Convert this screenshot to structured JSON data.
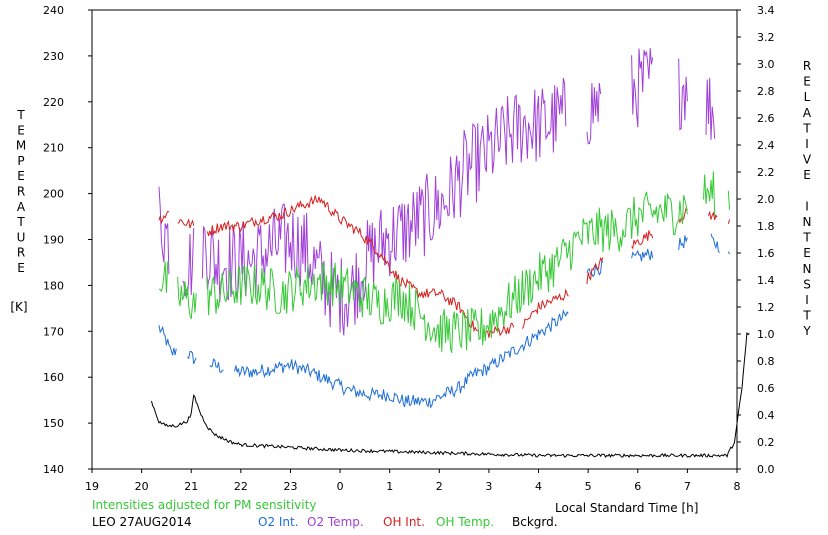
{
  "chart_data": {
    "type": "line",
    "title": "",
    "note": "Intensities adjusted for PM sensitivity",
    "site_date": "LEO 27AUG2014",
    "xlabel": "Local Standard Time [h]",
    "ylabel_left_letters": [
      "T",
      "E",
      "M",
      "P",
      "E",
      "R",
      "A",
      "T",
      "U",
      "R",
      "E"
    ],
    "ylabel_left_unit": "[K]",
    "ylabel_right_letters": [
      "R",
      "E",
      "L",
      "A",
      "T",
      "I",
      "V",
      "E",
      "",
      "I",
      "N",
      "T",
      "E",
      "N",
      "S",
      "I",
      "T",
      "Y"
    ],
    "x_axis": {
      "range": [
        19,
        32
      ],
      "ticks": [
        19,
        20,
        21,
        22,
        23,
        24,
        25,
        26,
        27,
        28,
        29,
        30,
        31,
        32
      ],
      "tick_labels": [
        "19",
        "20",
        "21",
        "22",
        "23",
        "0",
        "1",
        "2",
        "3",
        "4",
        "5",
        "6",
        "7",
        "8"
      ]
    },
    "y_left": {
      "range": [
        140,
        240
      ],
      "ticks": [
        140,
        150,
        160,
        170,
        180,
        190,
        200,
        210,
        220,
        230,
        240
      ],
      "tick_labels": [
        "140",
        "150",
        "160",
        "170",
        "180",
        "190",
        "200",
        "210",
        "220",
        "230",
        "240"
      ]
    },
    "y_right": {
      "range": [
        0.0,
        3.4
      ],
      "ticks": [
        0.0,
        0.2,
        0.4,
        0.6,
        0.8,
        1.0,
        1.2,
        1.4,
        1.6,
        1.8,
        2.0,
        2.2,
        2.4,
        2.6,
        2.8,
        3.0,
        3.2,
        3.4
      ],
      "tick_labels": [
        "0.0",
        "0.2",
        "0.4",
        "0.6",
        "0.8",
        "1.0",
        "1.2",
        "1.4",
        "1.6",
        "1.8",
        "2.0",
        "2.2",
        "2.4",
        "2.6",
        "2.8",
        "3.0",
        "3.2",
        "3.4"
      ]
    },
    "grid": false,
    "legend_position": "bottom",
    "series": [
      {
        "name": "O2 Int.",
        "axis": "right",
        "color": "#1e6ed8",
        "noise": 0.05,
        "gaps": [
          [
            20.7,
            20.9
          ],
          [
            21.1,
            21.35
          ],
          [
            21.65,
            21.85
          ],
          [
            28.6,
            28.95
          ],
          [
            29.3,
            29.85
          ],
          [
            30.3,
            30.8
          ],
          [
            31.0,
            31.45
          ],
          [
            31.65,
            31.8
          ]
        ],
        "x": [
          20.35,
          20.5,
          20.6,
          20.75,
          20.95,
          21.1,
          21.4,
          21.6,
          21.9,
          22.3,
          22.7,
          23.0,
          23.4,
          23.8,
          24.2,
          24.6,
          25.0,
          25.3,
          25.6,
          25.8,
          26.1,
          26.4,
          26.7,
          27.0,
          27.4,
          27.8,
          28.2,
          28.6,
          28.95,
          29.3,
          29.85,
          30.3,
          30.8,
          31.0,
          31.45,
          31.65,
          31.8,
          31.85
        ],
        "y": [
          1.05,
          0.95,
          0.85,
          0.9,
          0.85,
          0.8,
          0.78,
          0.75,
          0.72,
          0.72,
          0.75,
          0.77,
          0.72,
          0.65,
          0.58,
          0.55,
          0.55,
          0.5,
          0.5,
          0.5,
          0.55,
          0.6,
          0.7,
          0.75,
          0.85,
          0.95,
          1.05,
          1.15,
          1.45,
          1.5,
          1.55,
          1.6,
          1.65,
          1.7,
          1.7,
          1.65,
          1.55,
          1.6
        ]
      },
      {
        "name": "O2 Temp.",
        "axis": "left",
        "color": "#a040d8",
        "noise": 9,
        "gaps": [
          [
            20.55,
            20.8
          ],
          [
            21.05,
            21.2
          ],
          [
            28.55,
            28.95
          ],
          [
            29.25,
            29.85
          ],
          [
            30.3,
            30.8
          ],
          [
            31.0,
            31.35
          ],
          [
            31.55,
            31.8
          ]
        ],
        "x": [
          20.35,
          20.55,
          20.8,
          21.05,
          21.2,
          21.5,
          21.8,
          22.2,
          22.6,
          23.0,
          23.3,
          23.6,
          23.9,
          24.2,
          24.5,
          24.9,
          25.3,
          25.7,
          26.1,
          26.5,
          26.9,
          27.3,
          27.7,
          28.1,
          28.55,
          28.95,
          29.25,
          29.85,
          30.3,
          30.8,
          31.0,
          31.35,
          31.55,
          31.8
        ],
        "y": [
          195,
          190,
          185,
          185,
          190,
          185,
          185,
          185,
          188,
          190,
          188,
          182,
          178,
          178,
          185,
          190,
          192,
          195,
          198,
          205,
          208,
          212,
          215,
          215,
          217,
          218,
          220,
          222,
          225,
          222,
          225,
          220,
          218,
          218
        ]
      },
      {
        "name": "OH Int.",
        "axis": "right",
        "color": "#d81e1e",
        "noise": 0.04,
        "gaps": [
          [
            20.55,
            20.7
          ],
          [
            21.05,
            21.3
          ],
          [
            26.8,
            26.9
          ],
          [
            27.5,
            27.65
          ],
          [
            28.6,
            28.95
          ],
          [
            29.3,
            29.85
          ],
          [
            30.3,
            30.8
          ],
          [
            31.0,
            31.4
          ],
          [
            31.6,
            31.8
          ]
        ],
        "x": [
          20.35,
          20.55,
          20.7,
          21.05,
          21.3,
          21.6,
          22.0,
          22.4,
          22.8,
          23.2,
          23.6,
          24.0,
          24.4,
          24.8,
          25.2,
          25.6,
          26.0,
          26.4,
          26.8,
          26.9,
          27.5,
          27.65,
          28.0,
          28.6,
          28.95,
          29.3,
          29.85,
          30.3,
          30.8,
          31.0,
          31.4,
          31.6,
          31.8,
          31.85
        ],
        "y": [
          1.85,
          1.9,
          1.85,
          1.8,
          1.75,
          1.8,
          1.8,
          1.85,
          1.88,
          1.95,
          2.0,
          1.85,
          1.75,
          1.6,
          1.4,
          1.3,
          1.3,
          1.2,
          1.0,
          1.0,
          1.05,
          1.05,
          1.2,
          1.3,
          1.4,
          1.55,
          1.65,
          1.75,
          1.85,
          1.9,
          1.9,
          1.85,
          1.85,
          1.85
        ]
      },
      {
        "name": "OH Temp.",
        "axis": "left",
        "color": "#36c836",
        "noise": 5,
        "gaps": [
          [
            20.55,
            20.7
          ],
          [
            21.1,
            21.3
          ],
          [
            31.0,
            31.3
          ],
          [
            31.55,
            31.8
          ]
        ],
        "x": [
          20.35,
          20.55,
          20.7,
          21.1,
          21.3,
          21.6,
          22.0,
          22.4,
          22.8,
          23.2,
          23.6,
          24.0,
          24.4,
          24.8,
          25.2,
          25.6,
          26.0,
          26.4,
          26.8,
          27.2,
          27.6,
          28.0,
          28.4,
          28.8,
          29.2,
          29.6,
          30.0,
          30.4,
          30.8,
          31.0,
          31.3,
          31.55,
          31.8,
          31.85
        ],
        "y": [
          182,
          180,
          178,
          176,
          178,
          178,
          180,
          180,
          178,
          180,
          181,
          180,
          178,
          176,
          178,
          174,
          170,
          170,
          170,
          174,
          178,
          182,
          185,
          190,
          192,
          192,
          195,
          196,
          196,
          198,
          200,
          200,
          198,
          198
        ]
      },
      {
        "name": "Bckgrd.",
        "axis": "right",
        "color": "#000000",
        "noise": 0.012,
        "gaps": [],
        "x": [
          20.2,
          20.35,
          20.5,
          20.7,
          20.9,
          21.0,
          21.05,
          21.1,
          21.2,
          21.35,
          21.5,
          21.8,
          22.0,
          22.5,
          23.0,
          23.5,
          24.0,
          25.0,
          26.0,
          27.0,
          28.0,
          29.0,
          30.0,
          31.0,
          31.8,
          31.95,
          32.1,
          32.2,
          32.25
        ],
        "y": [
          0.5,
          0.35,
          0.32,
          0.32,
          0.35,
          0.4,
          0.55,
          0.5,
          0.4,
          0.3,
          0.25,
          0.2,
          0.18,
          0.17,
          0.16,
          0.15,
          0.14,
          0.13,
          0.12,
          0.11,
          0.1,
          0.1,
          0.1,
          0.1,
          0.1,
          0.2,
          0.6,
          1.0,
          1.0
        ]
      }
    ]
  }
}
